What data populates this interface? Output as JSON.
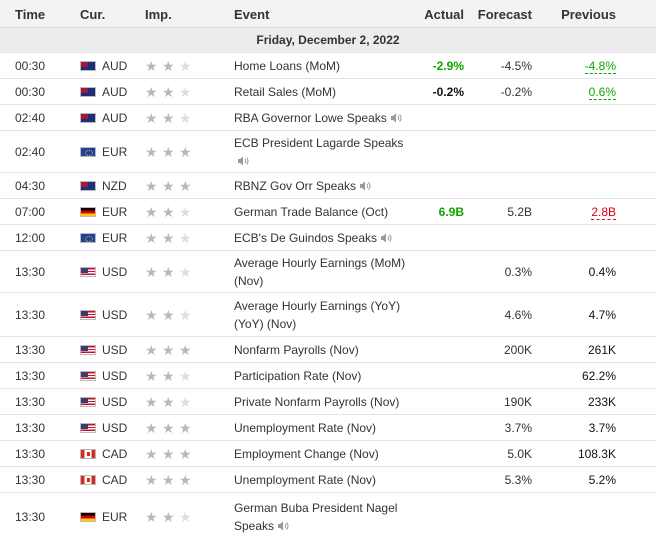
{
  "header": {
    "time": "Time",
    "currency": "Cur.",
    "importance": "Imp.",
    "event": "Event",
    "actual": "Actual",
    "forecast": "Forecast",
    "previous": "Previous"
  },
  "day_label": "Friday, December 2, 2022",
  "rows": [
    {
      "time": "00:30",
      "flag_icon": "australia-flag-icon",
      "currency": "AUD",
      "stars": 2,
      "event_lines": [
        "Home Loans (MoM)"
      ],
      "speaker": false,
      "actual": "-2.9%",
      "actual_color": "#0ea600",
      "forecast": "-4.5%",
      "previous": "-4.8%",
      "previous_style": "revised-up"
    },
    {
      "time": "00:30",
      "flag_icon": "australia-flag-icon",
      "currency": "AUD",
      "stars": 2,
      "event_lines": [
        "Retail Sales (MoM)"
      ],
      "speaker": false,
      "actual": "-0.2%",
      "actual_color": "#111111",
      "forecast": "-0.2%",
      "previous": "0.6%",
      "previous_style": "revised-up"
    },
    {
      "time": "02:40",
      "flag_icon": "australia-flag-icon",
      "currency": "AUD",
      "stars": 2,
      "event_lines": [
        "RBA Governor Lowe Speaks"
      ],
      "speaker": true,
      "actual": "",
      "forecast": "",
      "previous": ""
    },
    {
      "time": "02:40",
      "flag_icon": "eu-flag-icon",
      "currency": "EUR",
      "stars": 3,
      "event_lines": [
        "ECB President Lagarde Speaks",
        ""
      ],
      "speaker": true,
      "actual": "",
      "forecast": "",
      "previous": ""
    },
    {
      "time": "04:30",
      "flag_icon": "new-zealand-flag-icon",
      "currency": "NZD",
      "stars": 3,
      "event_lines": [
        "RBNZ Gov Orr Speaks"
      ],
      "speaker": true,
      "actual": "",
      "forecast": "",
      "previous": ""
    },
    {
      "time": "07:00",
      "flag_icon": "germany-flag-icon",
      "currency": "EUR",
      "stars": 2,
      "event_lines": [
        "German Trade Balance (Oct)"
      ],
      "speaker": false,
      "actual": "6.9B",
      "actual_color": "#0ea600",
      "forecast": "5.2B",
      "previous": "2.8B",
      "previous_style": "revised-down"
    },
    {
      "time": "12:00",
      "flag_icon": "eu-flag-icon",
      "currency": "EUR",
      "stars": 2,
      "event_lines": [
        "ECB's De Guindos Speaks"
      ],
      "speaker": true,
      "actual": "",
      "forecast": "",
      "previous": ""
    },
    {
      "time": "13:30",
      "flag_icon": "usa-flag-icon",
      "currency": "USD",
      "stars": 2,
      "event_lines": [
        "Average Hourly Earnings (MoM)",
        "(Nov)"
      ],
      "speaker": false,
      "actual": "",
      "forecast": "0.3%",
      "previous": "0.4%"
    },
    {
      "time": "13:30",
      "flag_icon": "usa-flag-icon",
      "currency": "USD",
      "stars": 2,
      "event_lines": [
        "Average Hourly Earnings (YoY)",
        "(YoY) (Nov)"
      ],
      "speaker": false,
      "actual": "",
      "forecast": "4.6%",
      "previous": "4.7%"
    },
    {
      "time": "13:30",
      "flag_icon": "usa-flag-icon",
      "currency": "USD",
      "stars": 3,
      "event_lines": [
        "Nonfarm Payrolls (Nov)"
      ],
      "speaker": false,
      "actual": "",
      "forecast": "200K",
      "previous": "261K"
    },
    {
      "time": "13:30",
      "flag_icon": "usa-flag-icon",
      "currency": "USD",
      "stars": 2,
      "event_lines": [
        "Participation Rate (Nov)"
      ],
      "speaker": false,
      "actual": "",
      "forecast": "",
      "previous": "62.2%"
    },
    {
      "time": "13:30",
      "flag_icon": "usa-flag-icon",
      "currency": "USD",
      "stars": 2,
      "event_lines": [
        "Private Nonfarm Payrolls (Nov)"
      ],
      "speaker": false,
      "actual": "",
      "forecast": "190K",
      "previous": "233K"
    },
    {
      "time": "13:30",
      "flag_icon": "usa-flag-icon",
      "currency": "USD",
      "stars": 3,
      "event_lines": [
        "Unemployment Rate (Nov)"
      ],
      "speaker": false,
      "actual": "",
      "forecast": "3.7%",
      "previous": "3.7%"
    },
    {
      "time": "13:30",
      "flag_icon": "canada-flag-icon",
      "currency": "CAD",
      "stars": 3,
      "event_lines": [
        "Employment Change (Nov)"
      ],
      "speaker": false,
      "actual": "",
      "forecast": "5.0K",
      "previous": "108.3K"
    },
    {
      "time": "13:30",
      "flag_icon": "canada-flag-icon",
      "currency": "CAD",
      "stars": 3,
      "event_lines": [
        "Unemployment Rate (Nov)"
      ],
      "speaker": false,
      "actual": "",
      "forecast": "5.3%",
      "previous": "5.2%"
    },
    {
      "time": "13:30",
      "flag_icon": "germany-flag-icon",
      "currency": "EUR",
      "stars": 2,
      "event_lines": [
        "German Buba President Nagel",
        "Speaks"
      ],
      "speaker": true,
      "actual": "",
      "forecast": "",
      "previous": ""
    }
  ],
  "colors": {
    "positive": "#0ea600",
    "negative": "#e0000f",
    "star_filled": "#b8b8b8",
    "header_bg": "#f3f3f3",
    "day_bg": "#ececec"
  }
}
